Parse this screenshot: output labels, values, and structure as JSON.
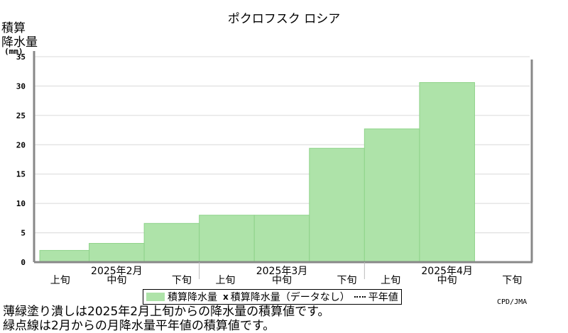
{
  "title": "ポクロフスク ロシア",
  "ylabel_line1": "積算",
  "ylabel_line2": "降水量",
  "yunit": "(mm)",
  "credit": "CPD/JMA",
  "legend": {
    "bar_label": "積算降水量",
    "missing_label": "積算降水量（データなし）",
    "normal_label": "平年値"
  },
  "notes": [
    "薄緑塗り潰しは2025年2月上旬からの降水量の積算値です。",
    "緑点線は2月からの月降水量平年値の積算値です。"
  ],
  "colors": {
    "bar_fill": "#aee3a9",
    "bar_edge": "#8fd38a",
    "grid": "#d9d9d9"
  },
  "chart_data": {
    "type": "area",
    "ylim": [
      0,
      35
    ],
    "yticks": [
      0,
      5,
      10,
      15,
      20,
      25,
      30,
      35
    ],
    "grid": true,
    "periods": [
      "上旬",
      "中旬",
      "下旬",
      "上旬",
      "中旬",
      "下旬",
      "上旬",
      "中旬",
      "下旬"
    ],
    "months": [
      "2025年2月",
      "2025年3月",
      "2025年4月"
    ],
    "values": [
      2.0,
      3.2,
      6.6,
      8.0,
      8.0,
      19.4,
      22.7,
      30.6,
      null
    ]
  }
}
